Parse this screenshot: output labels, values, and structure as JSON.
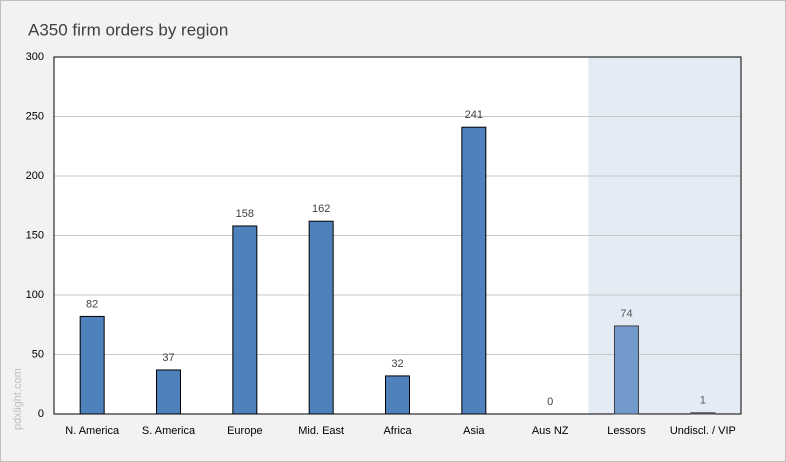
{
  "chart_data": {
    "type": "bar",
    "title": "A350 firm orders by region",
    "categories": [
      "N. America",
      "S. America",
      "Europe",
      "Mid. East",
      "Africa",
      "Asia",
      "Aus NZ",
      "Lessors",
      "Undiscl. / VIP"
    ],
    "values": [
      82,
      37,
      158,
      162,
      32,
      241,
      0,
      74,
      1
    ],
    "color": "#4f81bd",
    "colors": [
      "#4f81bd",
      "#4f81bd",
      "#4f81bd",
      "#4f81bd",
      "#4f81bd",
      "#4f81bd",
      "#4f81bd",
      "#729aca",
      "#729aca"
    ],
    "ylim": [
      0,
      300
    ],
    "yticks": [
      0,
      50,
      100,
      150,
      200,
      250,
      300
    ],
    "grid": true,
    "watermark": "pdxlight.com"
  }
}
